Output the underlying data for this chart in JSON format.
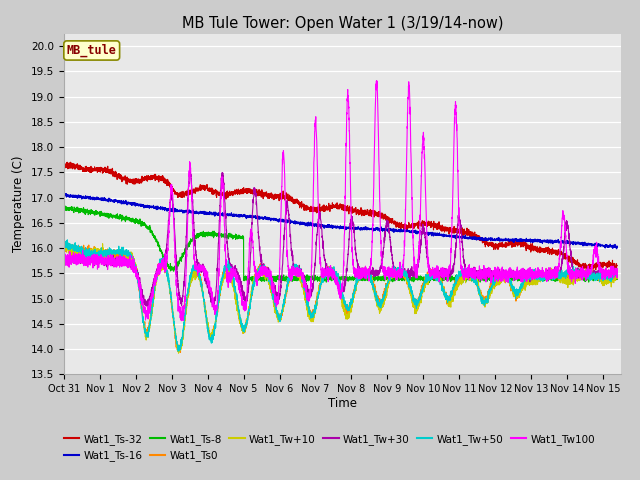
{
  "title": "MB Tule Tower: Open Water 1 (3/19/14-now)",
  "xlabel": "Time",
  "ylabel": "Temperature (C)",
  "ylim": [
    13.5,
    20.25
  ],
  "xlim": [
    0,
    15.5
  ],
  "fig_bg": "#cccccc",
  "plot_bg": "#e8e8e8",
  "series": [
    {
      "name": "Wat1_Ts-32",
      "color": "#cc0000"
    },
    {
      "name": "Wat1_Ts-16",
      "color": "#0000cc"
    },
    {
      "name": "Wat1_Ts-8",
      "color": "#00bb00"
    },
    {
      "name": "Wat1_Ts0",
      "color": "#ff8800"
    },
    {
      "name": "Wat1_Tw+10",
      "color": "#cccc00"
    },
    {
      "name": "Wat1_Tw+30",
      "color": "#aa00aa"
    },
    {
      "name": "Wat1_Tw+50",
      "color": "#00cccc"
    },
    {
      "name": "Wat1_Tw100",
      "color": "#ff00ff"
    }
  ],
  "xtick_labels": [
    "Oct 31",
    "Nov 1",
    "Nov 2",
    "Nov 3",
    "Nov 4",
    "Nov 5",
    "Nov 6",
    "Nov 7",
    "Nov 8",
    "Nov 9",
    "Nov 10",
    "Nov 11",
    "Nov 12",
    "Nov 13",
    "Nov 14",
    "Nov 15"
  ],
  "xtick_positions": [
    0,
    1,
    2,
    3,
    4,
    5,
    6,
    7,
    8,
    9,
    10,
    11,
    12,
    13,
    14,
    15
  ],
  "ytick_positions": [
    13.5,
    14.0,
    14.5,
    15.0,
    15.5,
    16.0,
    16.5,
    17.0,
    17.5,
    18.0,
    18.5,
    19.0,
    19.5,
    20.0
  ],
  "mb_tule_box": {
    "text": "MB_tule",
    "bg": "#ffffcc",
    "edge": "#888800",
    "text_color": "#880000"
  }
}
